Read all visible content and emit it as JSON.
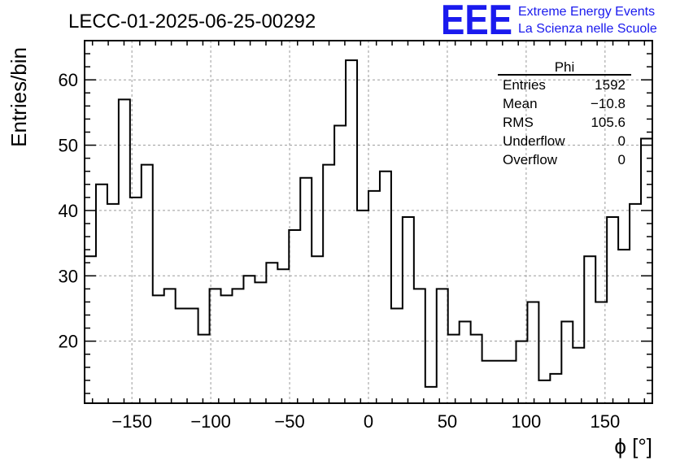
{
  "chart_data": {
    "type": "bar",
    "title": "LECC-01-2025-06-25-00292",
    "xlabel": "ϕ [°]",
    "ylabel": "Entries/bin",
    "xlim": [
      -180,
      180
    ],
    "ylim": [
      10.5,
      66
    ],
    "x_ticks": [
      -150,
      -100,
      -50,
      0,
      50,
      100,
      150
    ],
    "y_ticks": [
      20,
      30,
      40,
      50,
      60
    ],
    "grid": true,
    "bin_width": 7.2,
    "bin_edges_start": -180,
    "values": [
      33,
      44,
      41,
      57,
      42,
      47,
      27,
      28,
      25,
      25,
      21,
      28,
      27,
      28,
      30,
      29,
      32,
      31,
      37,
      45,
      33,
      47,
      53,
      63,
      40,
      43,
      46,
      25,
      39,
      28,
      13,
      28,
      21,
      23,
      21,
      17,
      17,
      17,
      20,
      26,
      14,
      15,
      23,
      19,
      33,
      26,
      39,
      34,
      41,
      51
    ],
    "stats_box": {
      "title": "Phi",
      "rows": [
        {
          "label": "Entries",
          "value": "1592"
        },
        {
          "label": "Mean",
          "value": "−10.8"
        },
        {
          "label": "RMS",
          "value": "105.6"
        },
        {
          "label": "Underflow",
          "value": "0"
        },
        {
          "label": "Overflow",
          "value": "0"
        }
      ]
    }
  },
  "logo": {
    "mark": "EEE",
    "line1": "Extreme Energy Events",
    "line2": "La Scienza nelle Scuole",
    "color": "#1a1aee"
  }
}
